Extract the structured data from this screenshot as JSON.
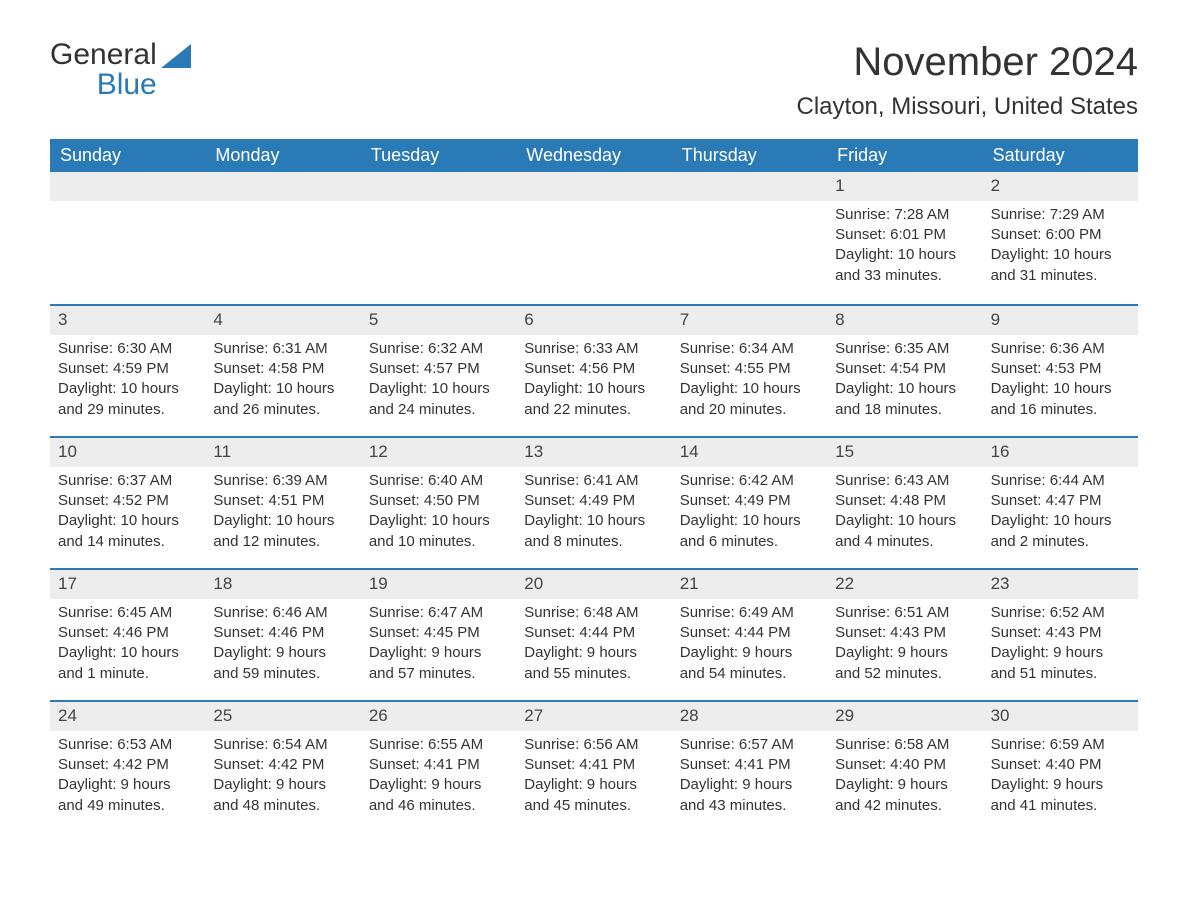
{
  "brand": {
    "word1": "General",
    "word2": "Blue",
    "accent": "#2a7ab8"
  },
  "title": "November 2024",
  "location": "Clayton, Missouri, United States",
  "dayNames": [
    "Sunday",
    "Monday",
    "Tuesday",
    "Wednesday",
    "Thursday",
    "Friday",
    "Saturday"
  ],
  "labels": {
    "sunrise": "Sunrise:",
    "sunset": "Sunset:",
    "daylight": "Daylight:"
  },
  "colors": {
    "headerBg": "#2a7ab8",
    "headerText": "#ffffff",
    "dayBarBg": "#ededed",
    "weekBorder": "#2a7ab8",
    "text": "#333333",
    "pageBg": "#ffffff"
  },
  "weeks": [
    [
      null,
      null,
      null,
      null,
      null,
      {
        "n": 1,
        "sunrise": "7:28 AM",
        "sunset": "6:01 PM",
        "daylight": "10 hours and 33 minutes."
      },
      {
        "n": 2,
        "sunrise": "7:29 AM",
        "sunset": "6:00 PM",
        "daylight": "10 hours and 31 minutes."
      }
    ],
    [
      {
        "n": 3,
        "sunrise": "6:30 AM",
        "sunset": "4:59 PM",
        "daylight": "10 hours and 29 minutes."
      },
      {
        "n": 4,
        "sunrise": "6:31 AM",
        "sunset": "4:58 PM",
        "daylight": "10 hours and 26 minutes."
      },
      {
        "n": 5,
        "sunrise": "6:32 AM",
        "sunset": "4:57 PM",
        "daylight": "10 hours and 24 minutes."
      },
      {
        "n": 6,
        "sunrise": "6:33 AM",
        "sunset": "4:56 PM",
        "daylight": "10 hours and 22 minutes."
      },
      {
        "n": 7,
        "sunrise": "6:34 AM",
        "sunset": "4:55 PM",
        "daylight": "10 hours and 20 minutes."
      },
      {
        "n": 8,
        "sunrise": "6:35 AM",
        "sunset": "4:54 PM",
        "daylight": "10 hours and 18 minutes."
      },
      {
        "n": 9,
        "sunrise": "6:36 AM",
        "sunset": "4:53 PM",
        "daylight": "10 hours and 16 minutes."
      }
    ],
    [
      {
        "n": 10,
        "sunrise": "6:37 AM",
        "sunset": "4:52 PM",
        "daylight": "10 hours and 14 minutes."
      },
      {
        "n": 11,
        "sunrise": "6:39 AM",
        "sunset": "4:51 PM",
        "daylight": "10 hours and 12 minutes."
      },
      {
        "n": 12,
        "sunrise": "6:40 AM",
        "sunset": "4:50 PM",
        "daylight": "10 hours and 10 minutes."
      },
      {
        "n": 13,
        "sunrise": "6:41 AM",
        "sunset": "4:49 PM",
        "daylight": "10 hours and 8 minutes."
      },
      {
        "n": 14,
        "sunrise": "6:42 AM",
        "sunset": "4:49 PM",
        "daylight": "10 hours and 6 minutes."
      },
      {
        "n": 15,
        "sunrise": "6:43 AM",
        "sunset": "4:48 PM",
        "daylight": "10 hours and 4 minutes."
      },
      {
        "n": 16,
        "sunrise": "6:44 AM",
        "sunset": "4:47 PM",
        "daylight": "10 hours and 2 minutes."
      }
    ],
    [
      {
        "n": 17,
        "sunrise": "6:45 AM",
        "sunset": "4:46 PM",
        "daylight": "10 hours and 1 minute."
      },
      {
        "n": 18,
        "sunrise": "6:46 AM",
        "sunset": "4:46 PM",
        "daylight": "9 hours and 59 minutes."
      },
      {
        "n": 19,
        "sunrise": "6:47 AM",
        "sunset": "4:45 PM",
        "daylight": "9 hours and 57 minutes."
      },
      {
        "n": 20,
        "sunrise": "6:48 AM",
        "sunset": "4:44 PM",
        "daylight": "9 hours and 55 minutes."
      },
      {
        "n": 21,
        "sunrise": "6:49 AM",
        "sunset": "4:44 PM",
        "daylight": "9 hours and 54 minutes."
      },
      {
        "n": 22,
        "sunrise": "6:51 AM",
        "sunset": "4:43 PM",
        "daylight": "9 hours and 52 minutes."
      },
      {
        "n": 23,
        "sunrise": "6:52 AM",
        "sunset": "4:43 PM",
        "daylight": "9 hours and 51 minutes."
      }
    ],
    [
      {
        "n": 24,
        "sunrise": "6:53 AM",
        "sunset": "4:42 PM",
        "daylight": "9 hours and 49 minutes."
      },
      {
        "n": 25,
        "sunrise": "6:54 AM",
        "sunset": "4:42 PM",
        "daylight": "9 hours and 48 minutes."
      },
      {
        "n": 26,
        "sunrise": "6:55 AM",
        "sunset": "4:41 PM",
        "daylight": "9 hours and 46 minutes."
      },
      {
        "n": 27,
        "sunrise": "6:56 AM",
        "sunset": "4:41 PM",
        "daylight": "9 hours and 45 minutes."
      },
      {
        "n": 28,
        "sunrise": "6:57 AM",
        "sunset": "4:41 PM",
        "daylight": "9 hours and 43 minutes."
      },
      {
        "n": 29,
        "sunrise": "6:58 AM",
        "sunset": "4:40 PM",
        "daylight": "9 hours and 42 minutes."
      },
      {
        "n": 30,
        "sunrise": "6:59 AM",
        "sunset": "4:40 PM",
        "daylight": "9 hours and 41 minutes."
      }
    ]
  ]
}
